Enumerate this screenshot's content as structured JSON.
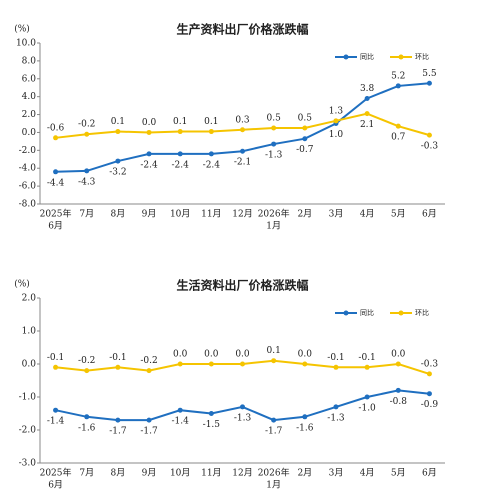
{
  "chart_data": [
    {
      "type": "line",
      "title": "生产资料出厂价格涨跌幅",
      "y_label": "(%)",
      "categories": [
        [
          "2025年",
          "6月"
        ],
        [
          "7月"
        ],
        [
          "8月"
        ],
        [
          "9月"
        ],
        [
          "10月"
        ],
        [
          "11月"
        ],
        [
          "12月"
        ],
        [
          "2026年",
          "1月"
        ],
        [
          "2月"
        ],
        [
          "3月"
        ],
        [
          "4月"
        ],
        [
          "5月"
        ],
        [
          "6月"
        ]
      ],
      "ylim": [
        -8,
        10
      ],
      "yticks": [
        {
          "value": 10,
          "label": "10.0"
        },
        {
          "value": 8,
          "label": "8.0"
        },
        {
          "value": 6,
          "label": "6.0"
        },
        {
          "value": 4,
          "label": "4.0"
        },
        {
          "value": 2,
          "label": "2.0"
        },
        {
          "value": 0,
          "label": "0.0"
        },
        {
          "value": -2,
          "label": "-2.0"
        },
        {
          "value": -4,
          "label": "-4.0"
        },
        {
          "value": -6,
          "label": "-6.0"
        },
        {
          "value": -8,
          "label": "-8.0"
        }
      ],
      "legend": "top-right",
      "series": [
        {
          "name": "同比",
          "color": "#1f6fc0",
          "values": [
            -4.4,
            -4.3,
            -3.2,
            -2.4,
            -2.4,
            -2.4,
            -2.1,
            -1.3,
            -0.7,
            1.0,
            3.8,
            5.2,
            5.5
          ],
          "value_labels": [
            "-4.4",
            "-4.3",
            "-3.2",
            "-2.4",
            "-2.4",
            "-2.4",
            "-2.1",
            "-1.3",
            "-0.7",
            "1.0",
            "3.8",
            "5.2",
            "5.5"
          ]
        },
        {
          "name": "环比",
          "color": "#f5c400",
          "values": [
            -0.6,
            -0.2,
            0.1,
            0.0,
            0.1,
            0.1,
            0.3,
            0.5,
            0.5,
            1.3,
            2.1,
            0.7,
            -0.3
          ],
          "value_labels": [
            "-0.6",
            "-0.2",
            "0.1",
            "0.0",
            "0.1",
            "0.1",
            "0.3",
            "0.5",
            "0.5",
            "1.3",
            "2.1",
            "0.7",
            "-0.3"
          ]
        }
      ]
    },
    {
      "type": "line",
      "title": "生活资料出厂价格涨跌幅",
      "y_label": "(%)",
      "categories": [
        [
          "2025年",
          "6月"
        ],
        [
          "7月"
        ],
        [
          "8月"
        ],
        [
          "9月"
        ],
        [
          "10月"
        ],
        [
          "11月"
        ],
        [
          "12月"
        ],
        [
          "2026年",
          "1月"
        ],
        [
          "2月"
        ],
        [
          "3月"
        ],
        [
          "4月"
        ],
        [
          "5月"
        ],
        [
          "6月"
        ]
      ],
      "ylim": [
        -3,
        2
      ],
      "yticks": [
        {
          "value": 2,
          "label": "2.0"
        },
        {
          "value": 1,
          "label": "1.0"
        },
        {
          "value": 0,
          "label": "0.0"
        },
        {
          "value": -1,
          "label": "-1.0"
        },
        {
          "value": -2,
          "label": "-2.0"
        },
        {
          "value": -3,
          "label": "-3.0"
        }
      ],
      "legend": "top-right",
      "series": [
        {
          "name": "同比",
          "color": "#1f6fc0",
          "values": [
            -1.4,
            -1.6,
            -1.7,
            -1.7,
            -1.4,
            -1.5,
            -1.3,
            -1.7,
            -1.6,
            -1.3,
            -1.0,
            -0.8,
            -0.9
          ],
          "value_labels": [
            "-1.4",
            "-1.6",
            "-1.7",
            "-1.7",
            "-1.4",
            "-1.5",
            "-1.3",
            "-1.7",
            "-1.6",
            "-1.3",
            "-1.0",
            "-0.8",
            "-0.9"
          ]
        },
        {
          "name": "环比",
          "color": "#f5c400",
          "values": [
            -0.1,
            -0.2,
            -0.1,
            -0.2,
            0.0,
            0.0,
            0.0,
            0.1,
            0.0,
            -0.1,
            -0.1,
            0.0,
            -0.3
          ],
          "value_labels": [
            "-0.1",
            "-0.2",
            "-0.1",
            "-0.2",
            "0.0",
            "0.0",
            "0.0",
            "0.1",
            "0.0",
            "-0.1",
            "-0.1",
            "0.0",
            "-0.3"
          ]
        }
      ]
    }
  ]
}
